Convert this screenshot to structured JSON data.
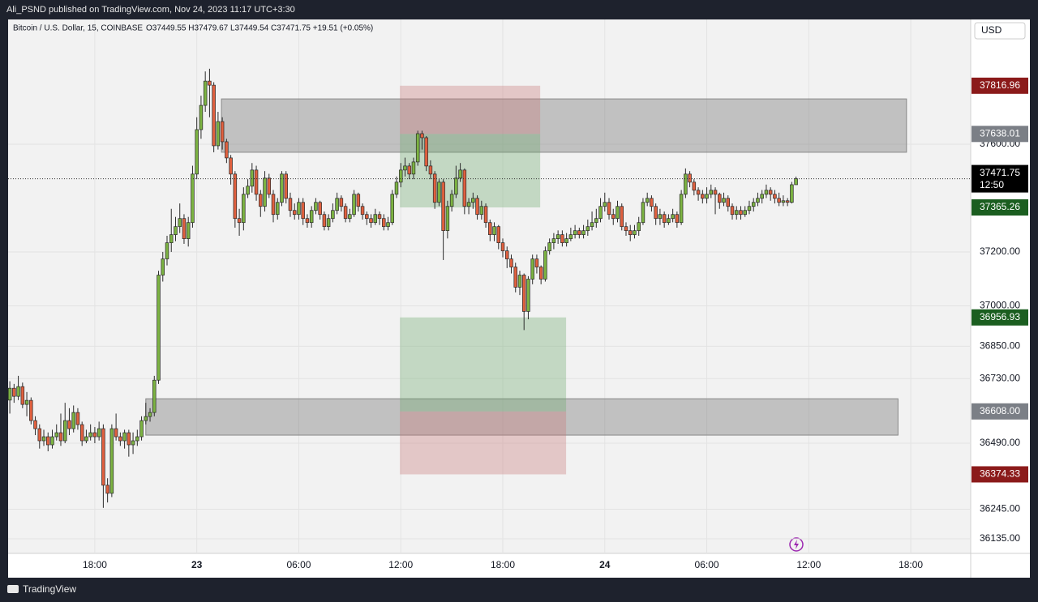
{
  "top_bar": "Ali_PSND published on TradingView.com, Nov 24, 2023 11:17 UTC+3:30",
  "footer": "TradingView",
  "chart_data": {
    "type": "candlestick",
    "symbol": "Bitcoin / U.S. Dollar, 15, COINBASE",
    "ohlc_text": "O37449.55 H37479.67 L37449.54 C37471.75 +19.51 (+0.05%)",
    "currency": "USD",
    "up_color": "#7cb342",
    "down_color": "#e0603f",
    "wick_color": "#2a2a2a",
    "xlim": [
      -0.4,
      226.1
    ],
    "ylim": [
      36081,
      38063
    ],
    "xticks": [
      {
        "value": 20,
        "label": "18:00"
      },
      {
        "value": 44,
        "label": "23"
      },
      {
        "value": 68,
        "label": "06:00"
      },
      {
        "value": 92,
        "label": "12:00"
      },
      {
        "value": 116,
        "label": "18:00"
      },
      {
        "value": 140,
        "label": "24"
      },
      {
        "value": 164,
        "label": "06:00"
      },
      {
        "value": 188,
        "label": "12:00"
      },
      {
        "value": 212,
        "label": "18:00"
      }
    ],
    "yticks": [
      {
        "value": 37600,
        "label": "37600.00"
      },
      {
        "value": 37200,
        "label": "37200.00"
      },
      {
        "value": 37000,
        "label": "37000.00"
      },
      {
        "value": 36850,
        "label": "36850.00"
      },
      {
        "value": 36730,
        "label": "36730.00"
      },
      {
        "value": 36490,
        "label": "36490.00"
      },
      {
        "value": 36245,
        "label": "36245.00"
      },
      {
        "value": 36135,
        "label": "36135.00"
      }
    ],
    "grid": true,
    "first_open": 36650,
    "close": [
      36694,
      36664,
      36700,
      36634,
      36649,
      36574,
      36544,
      36499,
      36514,
      36484,
      36514,
      36529,
      36499,
      36574,
      36544,
      36604,
      36559,
      36499,
      36514,
      36529,
      36514,
      36544,
      36334,
      36304,
      36544,
      36514,
      36499,
      36529,
      36484,
      36499,
      36514,
      36574,
      36589,
      36604,
      36724,
      37114,
      37174,
      37234,
      37264,
      37294,
      37324,
      37249,
      37309,
      37489,
      37654,
      37744,
      37834,
      37819,
      37594,
      37684,
      37609,
      37549,
      37489,
      37324,
      37309,
      37414,
      37444,
      37504,
      37414,
      37369,
      37474,
      37414,
      37339,
      37384,
      37489,
      37399,
      37354,
      37339,
      37384,
      37324,
      37309,
      37354,
      37384,
      37339,
      37294,
      37324,
      37354,
      37399,
      37369,
      37324,
      37339,
      37414,
      37369,
      37339,
      37324,
      37309,
      37339,
      37324,
      37294,
      37309,
      37414,
      37459,
      37504,
      37519,
      37489,
      37534,
      37639,
      37624,
      37519,
      37489,
      37384,
      37459,
      37279,
      37369,
      37414,
      37474,
      37504,
      37369,
      37384,
      37399,
      37339,
      37369,
      37309,
      37264,
      37294,
      37234,
      37204,
      37174,
      37144,
      37069,
      37114,
      36979,
      37099,
      37174,
      37144,
      37099,
      37204,
      37234,
      37249,
      37264,
      37234,
      37249,
      37264,
      37279,
      37264,
      37279,
      37294,
      37309,
      37324,
      37369,
      37384,
      37339,
      37324,
      37369,
      37294,
      37279,
      37264,
      37279,
      37309,
      37384,
      37399,
      37369,
      37324,
      37339,
      37309,
      37324,
      37339,
      37309,
      37414,
      37489,
      37459,
      37429,
      37414,
      37399,
      37414,
      37429,
      37414,
      37384,
      37399,
      37369,
      37339,
      37354,
      37339,
      37354,
      37369,
      37384,
      37399,
      37414,
      37429,
      37414,
      37399,
      37384,
      37390,
      37384,
      37449.55,
      37471.75
    ],
    "high": [
      36720,
      36710,
      36740,
      36715,
      36680,
      36660,
      36590,
      36560,
      36540,
      36530,
      36540,
      36560,
      36600,
      36640,
      36620,
      36630,
      36620,
      36570,
      36540,
      36560,
      36550,
      36570,
      36560,
      36360,
      36560,
      36600,
      36530,
      36540,
      36540,
      36530,
      36540,
      36590,
      36640,
      36620,
      36740,
      37130,
      37200,
      37260,
      37360,
      37330,
      37380,
      37340,
      37330,
      37520,
      37700,
      37780,
      37870,
      37880,
      37830,
      37720,
      37700,
      37620,
      37560,
      37500,
      37360,
      37440,
      37470,
      37530,
      37520,
      37430,
      37500,
      37490,
      37430,
      37400,
      37500,
      37500,
      37420,
      37380,
      37400,
      37400,
      37340,
      37370,
      37400,
      37390,
      37350,
      37340,
      37380,
      37420,
      37410,
      37380,
      37360,
      37430,
      37420,
      37380,
      37350,
      37340,
      37360,
      37350,
      37340,
      37330,
      37430,
      37480,
      37530,
      37550,
      37530,
      37550,
      37650,
      37650,
      37630,
      37540,
      37500,
      37470,
      37470,
      37390,
      37430,
      37520,
      37530,
      37510,
      37400,
      37420,
      37410,
      37390,
      37380,
      37320,
      37310,
      37300,
      37250,
      37220,
      37190,
      37160,
      37130,
      37120,
      37110,
      37190,
      37190,
      37150,
      37220,
      37250,
      37270,
      37280,
      37280,
      37270,
      37290,
      37300,
      37290,
      37300,
      37320,
      37350,
      37360,
      37400,
      37420,
      37400,
      37360,
      37390,
      37380,
      37310,
      37300,
      37300,
      37330,
      37400,
      37420,
      37410,
      37380,
      37360,
      37350,
      37340,
      37360,
      37350,
      37430,
      37510,
      37500,
      37470,
      37440,
      37430,
      37440,
      37450,
      37440,
      37420,
      37420,
      37410,
      37380,
      37370,
      37370,
      37370,
      37390,
      37400,
      37420,
      37430,
      37450,
      37440,
      37430,
      37420,
      37410,
      37400,
      37460,
      37479.67
    ],
    "low": [
      36600,
      36640,
      36650,
      36620,
      36590,
      36560,
      36520,
      36470,
      36480,
      36460,
      36470,
      36500,
      36480,
      36490,
      36520,
      36530,
      36540,
      36480,
      36490,
      36500,
      36490,
      36500,
      36250,
      36270,
      36290,
      36500,
      36480,
      36470,
      36440,
      36450,
      36480,
      36500,
      36560,
      36570,
      36590,
      36710,
      37090,
      37150,
      37200,
      37240,
      37270,
      37230,
      37220,
      37290,
      37470,
      37620,
      37720,
      37700,
      37570,
      37580,
      37580,
      37530,
      37450,
      37290,
      37260,
      37280,
      37400,
      37420,
      37390,
      37330,
      37350,
      37400,
      37310,
      37320,
      37370,
      37380,
      37330,
      37320,
      37320,
      37300,
      37290,
      37290,
      37340,
      37320,
      37280,
      37280,
      37310,
      37340,
      37350,
      37310,
      37310,
      37330,
      37350,
      37320,
      37300,
      37290,
      37300,
      37300,
      37280,
      37280,
      37300,
      37400,
      37440,
      37480,
      37470,
      37470,
      37520,
      37580,
      37500,
      37470,
      37360,
      37370,
      37170,
      37250,
      37350,
      37400,
      37460,
      37340,
      37340,
      37360,
      37320,
      37320,
      37290,
      37240,
      37240,
      37210,
      37180,
      37140,
      37120,
      37050,
      37040,
      36910,
      36950,
      37080,
      37120,
      37080,
      37090,
      37190,
      37210,
      37230,
      37220,
      37220,
      37240,
      37250,
      37250,
      37250,
      37260,
      37280,
      37290,
      37310,
      37350,
      37320,
      37300,
      37310,
      37280,
      37260,
      37240,
      37250,
      37260,
      37300,
      37370,
      37350,
      37300,
      37300,
      37290,
      37300,
      37310,
      37290,
      37300,
      37400,
      37440,
      37410,
      37390,
      37380,
      37380,
      37400,
      37340,
      37360,
      37370,
      37350,
      37320,
      37320,
      37320,
      37330,
      37340,
      37350,
      37370,
      37380,
      37400,
      37390,
      37380,
      37370,
      37370,
      37370,
      37380,
      37449.54
    ],
    "zones": [
      {
        "x": [
          49.8,
          211
        ],
        "y": [
          37570,
          37768
        ]
      },
      {
        "x": [
          32,
          209
        ],
        "y": [
          36520,
          36655
        ]
      }
    ],
    "positions": [
      {
        "x": [
          91.8,
          124.8
        ],
        "stop": 37816.96,
        "entry": 37638.01,
        "target": 37365.26
      },
      {
        "x": [
          91.8,
          130.9
        ],
        "stop": 36374.33,
        "entry": 36608.0,
        "target": 36956.93
      }
    ],
    "stop_labels": [
      "37816.96",
      "36374.33"
    ],
    "entry_labels": [
      "37638.01",
      "36608.00"
    ],
    "target_labels": [
      "37365.26",
      "36956.93"
    ],
    "last_price_label": "37471.75",
    "countdown": "12:50"
  }
}
